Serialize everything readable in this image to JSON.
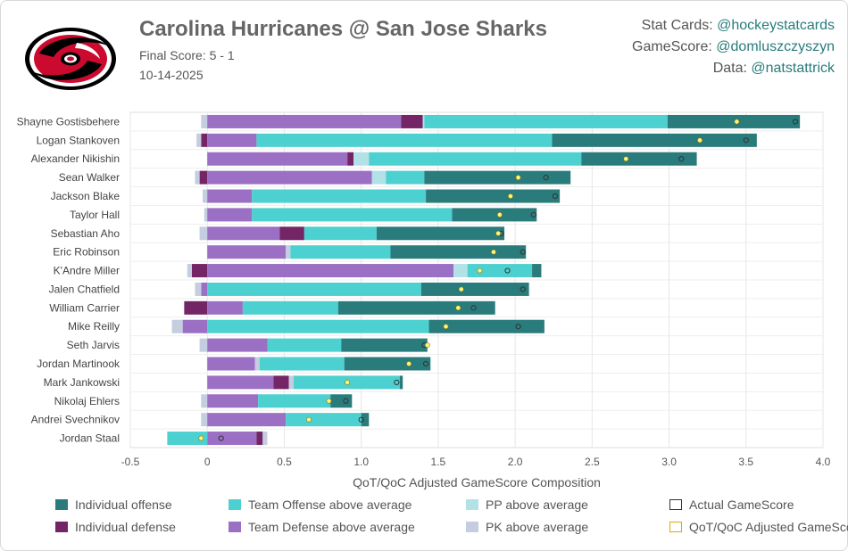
{
  "header": {
    "title": "Carolina Hurricanes @ San Jose Sharks",
    "final_score": "Final Score: 5 - 1",
    "date": "10-14-2025"
  },
  "credits": [
    {
      "label": "Stat Cards: ",
      "handle": "@hockeystatcards"
    },
    {
      "label": "GameScore: ",
      "handle": "@domluszczyszyn"
    },
    {
      "label": "Data: ",
      "handle": "@natstattrick"
    }
  ],
  "colors": {
    "individual_offense": "#2a7b7b",
    "individual_defense": "#742566",
    "team_offense": "#4dd0d0",
    "team_defense": "#9b6fc4",
    "pp": "#b3e1e8",
    "pk": "#c5cde0",
    "qot_marker": "#fff37a",
    "logo_red": "#cc0a2f"
  },
  "legend": [
    {
      "key": "individual_offense",
      "label": "Individual offense",
      "style": "fill"
    },
    {
      "key": "team_offense",
      "label": "Team Offense above average",
      "style": "fill"
    },
    {
      "key": "pp",
      "label": "PP above average",
      "style": "fill"
    },
    {
      "key": "actual",
      "label": "Actual GameScore",
      "style": "outline-dark"
    },
    {
      "key": "individual_defense",
      "label": "Individual defense",
      "style": "fill"
    },
    {
      "key": "team_defense",
      "label": "Team Defense above average",
      "style": "fill"
    },
    {
      "key": "pk",
      "label": "PK above average",
      "style": "fill"
    },
    {
      "key": "qot",
      "label": "QoT/QoC Adjusted GameScore",
      "style": "outline-gold"
    }
  ],
  "chart_data": {
    "type": "bar",
    "orientation": "horizontal-stacked",
    "xlabel": "QoT/QoC Adjusted GameScore Composition",
    "xlim": [
      -0.5,
      4.0
    ],
    "xticks": [
      -0.5,
      0,
      0.5,
      1.0,
      1.5,
      2.0,
      2.5,
      3.0,
      3.5,
      4.0
    ],
    "xtick_labels": [
      "-0.5",
      "0",
      "0.5",
      "1.0",
      "1.5",
      "2.0",
      "2.5",
      "3.0",
      "3.5",
      "4.0"
    ],
    "grid": true,
    "stack_order_positive": [
      "team_defense",
      "individual_defense",
      "pk",
      "pp",
      "team_offense",
      "individual_offense"
    ],
    "players": [
      {
        "name": "Shayne Gostisbehere",
        "team_defense": 1.26,
        "individual_defense": 0.14,
        "pk": 0.0,
        "pp": 0.01,
        "team_offense": 1.58,
        "individual_offense": 0.86,
        "neg_pk": -0.04,
        "neg_individual_defense": 0.0,
        "neg_team_offense": 0.0,
        "neg_team_defense": 0.0,
        "qot": 3.44,
        "actual": 3.82
      },
      {
        "name": "Logan Stankoven",
        "team_defense": 0.32,
        "individual_defense": 0.0,
        "pk": 0.0,
        "pp": 0.0,
        "team_offense": 1.92,
        "individual_offense": 1.33,
        "neg_pk": -0.03,
        "neg_individual_defense": -0.04,
        "neg_team_offense": 0.0,
        "neg_team_defense": 0.0,
        "qot": 3.2,
        "actual": 3.5
      },
      {
        "name": "Alexander Nikishin",
        "team_defense": 0.91,
        "individual_defense": 0.04,
        "pk": 0.0,
        "pp": 0.1,
        "team_offense": 1.38,
        "individual_offense": 0.75,
        "neg_pk": 0.0,
        "neg_individual_defense": 0.0,
        "neg_team_offense": 0.0,
        "neg_team_defense": 0.0,
        "qot": 2.72,
        "actual": 3.08
      },
      {
        "name": "Sean Walker",
        "team_defense": 1.07,
        "individual_defense": 0.0,
        "pk": 0.0,
        "pp": 0.09,
        "team_offense": 0.25,
        "individual_offense": 0.95,
        "neg_pk": -0.03,
        "neg_individual_defense": -0.05,
        "neg_team_offense": 0.0,
        "neg_team_defense": 0.0,
        "qot": 2.02,
        "actual": 2.2
      },
      {
        "name": "Jackson Blake",
        "team_defense": 0.29,
        "individual_defense": 0.0,
        "pk": 0.0,
        "pp": 0.0,
        "team_offense": 1.13,
        "individual_offense": 0.87,
        "neg_pk": -0.03,
        "neg_individual_defense": 0.0,
        "neg_team_offense": 0.0,
        "neg_team_defense": 0.0,
        "qot": 1.97,
        "actual": 2.26
      },
      {
        "name": "Taylor Hall",
        "team_defense": 0.29,
        "individual_defense": 0.0,
        "pk": 0.0,
        "pp": 0.0,
        "team_offense": 1.3,
        "individual_offense": 0.55,
        "neg_pk": -0.02,
        "neg_individual_defense": 0.0,
        "neg_team_offense": 0.0,
        "neg_team_defense": 0.0,
        "qot": 1.9,
        "actual": 2.12
      },
      {
        "name": "Sebastian Aho",
        "team_defense": 0.47,
        "individual_defense": 0.16,
        "pk": 0.0,
        "pp": 0.0,
        "team_offense": 0.47,
        "individual_offense": 0.83,
        "neg_pk": -0.05,
        "neg_individual_defense": 0.0,
        "neg_team_offense": 0.0,
        "neg_team_defense": 0.0,
        "qot": 1.89,
        "actual": 1.91
      },
      {
        "name": "Eric Robinson",
        "team_defense": 0.51,
        "individual_defense": 0.0,
        "pk": 0.03,
        "pp": 0.0,
        "team_offense": 0.65,
        "individual_offense": 0.88,
        "neg_pk": 0.0,
        "neg_individual_defense": 0.0,
        "neg_team_offense": 0.0,
        "neg_team_defense": 0.0,
        "qot": 1.86,
        "actual": 2.05
      },
      {
        "name": "K'Andre Miller",
        "team_defense": 1.6,
        "individual_defense": 0.0,
        "pk": 0.0,
        "pp": 0.09,
        "team_offense": 0.42,
        "individual_offense": 0.06,
        "neg_pk": -0.03,
        "neg_individual_defense": -0.1,
        "neg_team_offense": 0.0,
        "neg_team_defense": 0.0,
        "qot": 1.77,
        "actual": 1.95
      },
      {
        "name": "Jalen Chatfield",
        "team_defense": 0.0,
        "individual_defense": 0.0,
        "pk": 0.0,
        "pp": 0.0,
        "team_offense": 1.39,
        "individual_offense": 0.7,
        "neg_pk": -0.04,
        "neg_individual_defense": 0.0,
        "neg_team_offense": 0.0,
        "neg_team_defense": -0.04,
        "qot": 1.65,
        "actual": 2.05
      },
      {
        "name": "William Carrier",
        "team_defense": 0.23,
        "individual_defense": 0.0,
        "pk": 0.0,
        "pp": 0.0,
        "team_offense": 0.62,
        "individual_offense": 1.02,
        "neg_pk": 0.0,
        "neg_individual_defense": -0.15,
        "neg_team_offense": 0.0,
        "neg_team_defense": 0.0,
        "qot": 1.63,
        "actual": 1.73
      },
      {
        "name": "Mike Reilly",
        "team_defense": 0.0,
        "individual_defense": 0.0,
        "pk": 0.0,
        "pp": 0.0,
        "team_offense": 1.44,
        "individual_offense": 0.75,
        "neg_pk": -0.07,
        "neg_individual_defense": 0.0,
        "neg_team_offense": 0.0,
        "neg_team_defense": -0.16,
        "qot": 1.55,
        "actual": 2.02
      },
      {
        "name": "Seth Jarvis",
        "team_defense": 0.39,
        "individual_defense": 0.0,
        "pk": 0.0,
        "pp": 0.0,
        "team_offense": 0.48,
        "individual_offense": 0.56,
        "neg_pk": -0.05,
        "neg_individual_defense": 0.0,
        "neg_team_offense": 0.0,
        "neg_team_defense": 0.0,
        "qot": 1.43,
        "actual": 1.41
      },
      {
        "name": "Jordan Martinook",
        "team_defense": 0.31,
        "individual_defense": 0.0,
        "pk": 0.03,
        "pp": 0.0,
        "team_offense": 0.55,
        "individual_offense": 0.56,
        "neg_pk": 0.0,
        "neg_individual_defense": 0.0,
        "neg_team_offense": 0.0,
        "neg_team_defense": 0.0,
        "qot": 1.31,
        "actual": 1.42
      },
      {
        "name": "Mark Jankowski",
        "team_defense": 0.43,
        "individual_defense": 0.1,
        "pk": 0.03,
        "pp": 0.0,
        "team_offense": 0.69,
        "individual_offense": 0.02,
        "neg_pk": 0.0,
        "neg_individual_defense": 0.0,
        "neg_team_offense": 0.0,
        "neg_team_defense": 0.0,
        "qot": 0.91,
        "actual": 1.23
      },
      {
        "name": "Nikolaj Ehlers",
        "team_defense": 0.33,
        "individual_defense": 0.0,
        "pk": 0.0,
        "pp": 0.0,
        "team_offense": 0.47,
        "individual_offense": 0.14,
        "neg_pk": -0.04,
        "neg_individual_defense": 0.0,
        "neg_team_offense": 0.0,
        "neg_team_defense": 0.0,
        "qot": 0.79,
        "actual": 0.9
      },
      {
        "name": "Andrei Svechnikov",
        "team_defense": 0.51,
        "individual_defense": 0.0,
        "pk": 0.0,
        "pp": 0.0,
        "team_offense": 0.49,
        "individual_offense": 0.05,
        "neg_pk": -0.04,
        "neg_individual_defense": 0.0,
        "neg_team_offense": 0.0,
        "neg_team_defense": 0.0,
        "qot": 0.66,
        "actual": 1.0
      },
      {
        "name": "Jordan Staal",
        "team_defense": 0.32,
        "individual_defense": 0.04,
        "pk": 0.03,
        "pp": 0.0,
        "team_offense": 0.0,
        "individual_offense": 0.0,
        "neg_pk": 0.0,
        "neg_individual_defense": 0.0,
        "neg_team_offense": -0.26,
        "neg_team_defense": 0.0,
        "qot": -0.04,
        "actual": 0.09
      }
    ]
  }
}
